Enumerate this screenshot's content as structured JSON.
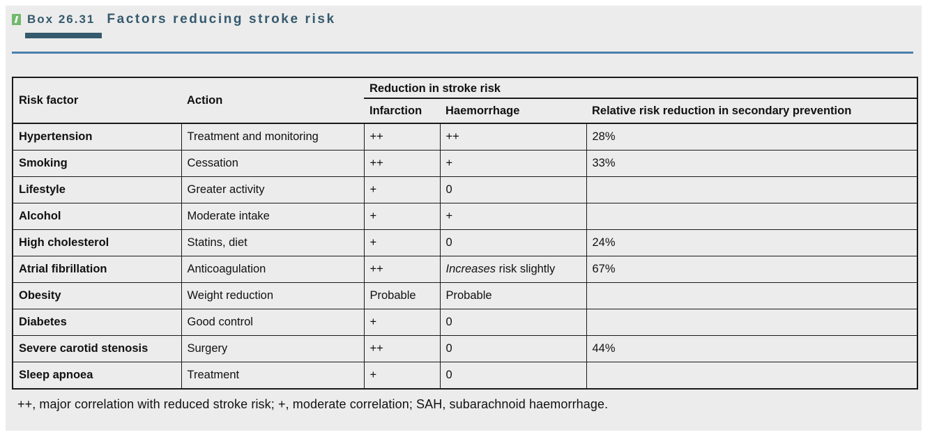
{
  "box": {
    "label": "Box 26.31",
    "title": "Factors reducing stroke risk"
  },
  "table": {
    "columns": {
      "risk_factor": "Risk factor",
      "action": "Action",
      "group": "Reduction in stroke risk",
      "infarction": "Infarction",
      "haemorrhage": "Haemorrhage",
      "relative": "Relative risk reduction in secondary prevention"
    },
    "rows": [
      [
        "Hypertension",
        "Treatment and monitoring",
        "++",
        "++",
        "28%"
      ],
      [
        "Smoking",
        "Cessation",
        "++",
        "+",
        "33%"
      ],
      [
        "Lifestyle",
        "Greater activity",
        "+",
        "0",
        ""
      ],
      [
        "Alcohol",
        "Moderate intake",
        "+",
        "+",
        ""
      ],
      [
        "High cholesterol",
        "Statins, diet",
        "+",
        "0",
        "24%"
      ],
      [
        "Atrial fibrillation",
        "Anticoagulation",
        "++",
        "*Increases* risk slightly",
        "67%"
      ],
      [
        "Obesity",
        "Weight reduction",
        "Probable",
        "Probable",
        ""
      ],
      [
        "Diabetes",
        "Good control",
        "+",
        "0",
        ""
      ],
      [
        "Severe carotid stenosis",
        "Surgery",
        "++",
        "0",
        "44%"
      ],
      [
        "Sleep apnoea",
        "Treatment",
        "+",
        "0",
        ""
      ]
    ]
  },
  "footnote": "++, major correlation with reduced stroke risk; +, moderate correlation; SAH, subarachnoid haemorrhage.",
  "colors": {
    "accent_teal": "#35596d",
    "rule_blue": "#4a7fae",
    "icon_green": "#72b96e",
    "panel_bg": "#ececec",
    "grid": "#1a1a1a",
    "text": "#111111"
  }
}
